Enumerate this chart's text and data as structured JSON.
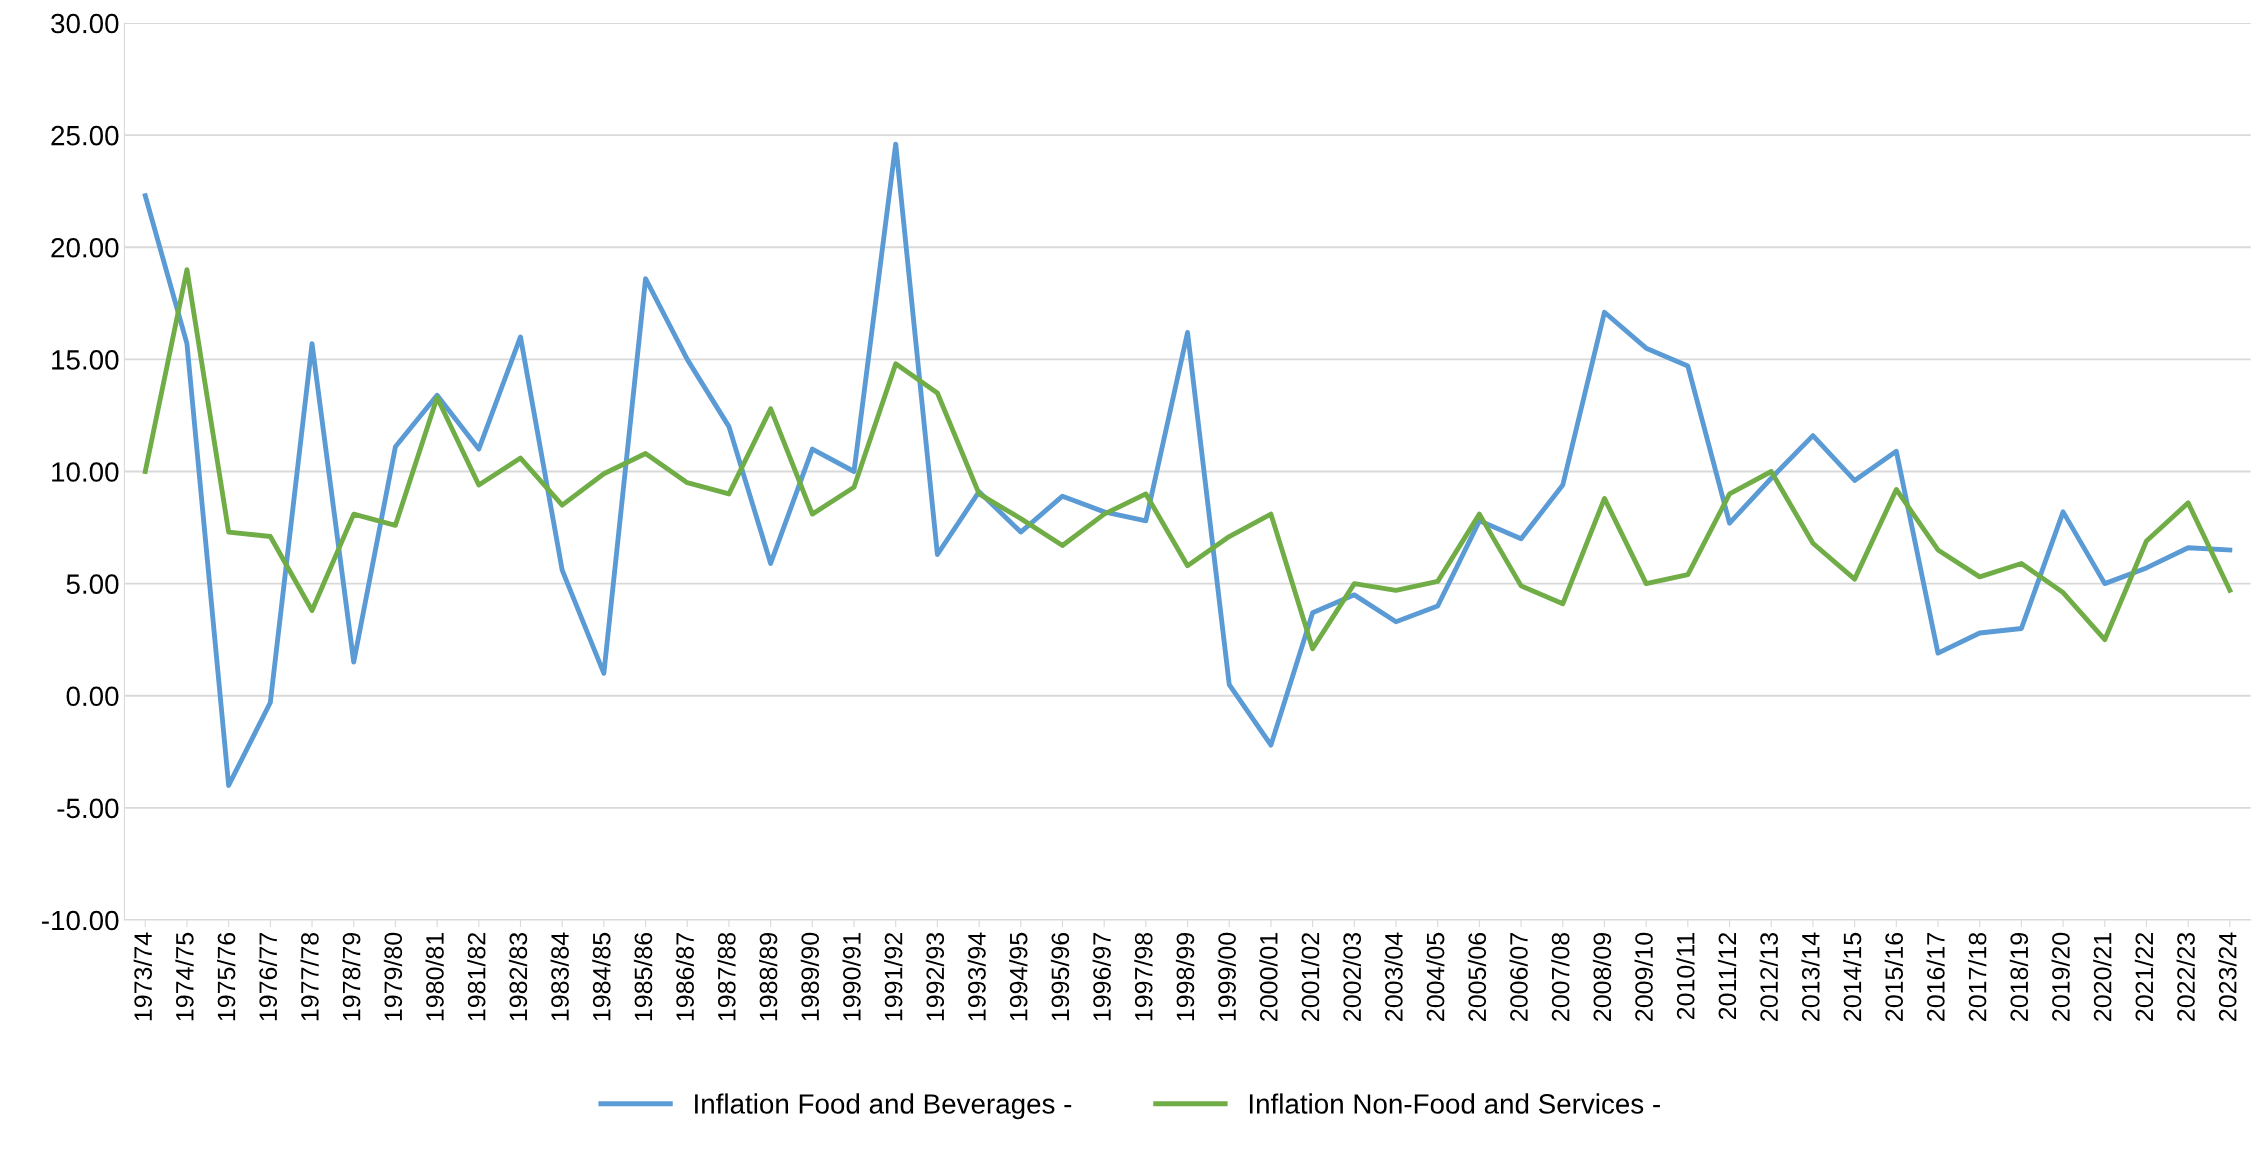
{
  "chart_data": {
    "type": "line",
    "categories": [
      "1973/74",
      "1974/75",
      "1975/76",
      "1976/77",
      "1977/78",
      "1978/79",
      "1979/80",
      "1980/81",
      "1981/82",
      "1982/83",
      "1983/84",
      "1984/85",
      "1985/86",
      "1986/87",
      "1987/88",
      "1988/89",
      "1989/90",
      "1990/91",
      "1991/92",
      "1992/93",
      "1993/94",
      "1994/95",
      "1995/96",
      "1996/97",
      "1997/98",
      "1998/99",
      "1999/00",
      "2000/01",
      "2001/02",
      "2002/03",
      "2003/04",
      "2004/05",
      "2005/06",
      "2006/07",
      "2007/08",
      "2008/09",
      "2009/10",
      "2010/11",
      "2011/12",
      "2012/13",
      "2013/14",
      "2014/15",
      "2015/16",
      "2016/17",
      "2017/18",
      "2018/19",
      "2019/20",
      "2020/21",
      "2021/22",
      "2022/23",
      "2023/24"
    ],
    "series": [
      {
        "name": "Inflation Food and Beverages -",
        "color": "#5b9bd5",
        "values": [
          22.3,
          15.7,
          -4.0,
          -0.3,
          15.7,
          1.5,
          11.1,
          13.4,
          11.0,
          16.0,
          5.6,
          1.0,
          18.6,
          15.0,
          12.0,
          5.9,
          11.0,
          10.0,
          24.6,
          6.3,
          9.1,
          7.3,
          8.9,
          8.2,
          7.8,
          16.2,
          0.5,
          -2.2,
          3.7,
          4.5,
          3.3,
          4.0,
          7.8,
          7.0,
          9.4,
          17.1,
          15.5,
          14.7,
          7.7,
          9.7,
          11.6,
          9.6,
          10.9,
          1.9,
          2.8,
          3.0,
          8.2,
          5.0,
          5.7,
          6.6,
          6.5
        ]
      },
      {
        "name": "Inflation Non-Food and Services -",
        "color": "#70ad47",
        "values": [
          10.0,
          19.0,
          7.3,
          7.1,
          3.8,
          8.1,
          7.6,
          13.3,
          9.4,
          10.6,
          8.5,
          9.9,
          10.8,
          9.5,
          9.0,
          12.8,
          8.1,
          9.3,
          14.8,
          13.5,
          9.0,
          7.9,
          6.7,
          8.1,
          9.0,
          5.8,
          7.1,
          8.1,
          2.1,
          5.0,
          4.7,
          5.1,
          8.1,
          4.9,
          4.1,
          8.8,
          5.0,
          5.4,
          9.0,
          10.0,
          6.8,
          5.2,
          9.2,
          6.5,
          5.3,
          5.9,
          4.6,
          2.5,
          6.9,
          8.6,
          4.7
        ]
      }
    ],
    "ylim": [
      -10,
      30
    ],
    "yticks": [
      {
        "value": -10,
        "label": "-10.00"
      },
      {
        "value": -5,
        "label": "-5.00"
      },
      {
        "value": 0,
        "label": "0.00"
      },
      {
        "value": 5,
        "label": "5.00"
      },
      {
        "value": 10,
        "label": "10.00"
      },
      {
        "value": 15,
        "label": "15.00"
      },
      {
        "value": 20,
        "label": "20.00"
      },
      {
        "value": 25,
        "label": "25.00"
      },
      {
        "value": 30,
        "label": "30.00"
      }
    ],
    "grid": "y",
    "legend": "bottom",
    "marker": "none",
    "line_style": "solid"
  }
}
